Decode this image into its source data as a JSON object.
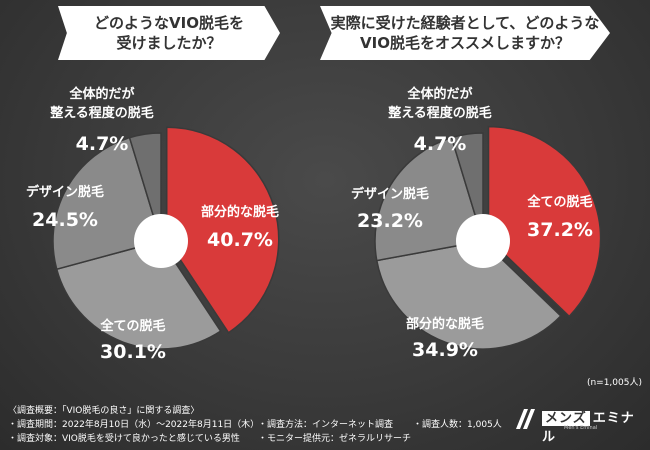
{
  "questions": {
    "left": "どのようなVIO脱毛を\n受けましたか？",
    "right": "実際に受けた経験者として、どのような\nVIO脱毛をオススメしますか？"
  },
  "chart_data": [
    {
      "type": "pie",
      "title": "どのようなVIO脱毛を受けましたか？",
      "slices": [
        {
          "label": "部分的な脱毛",
          "value": 40.7,
          "color": "#d93a3a"
        },
        {
          "label": "全ての脱毛",
          "value": 30.1,
          "color": "#9b9b9b"
        },
        {
          "label": "デザイン脱毛",
          "value": 24.5,
          "color": "#8a8a8a"
        },
        {
          "label": "全体的だが整える程度の脱毛",
          "value": 4.7,
          "color": "#6f6f6f"
        }
      ]
    },
    {
      "type": "pie",
      "title": "実際に受けた経験者として、どのようなVIO脱毛をオススメしますか？",
      "slices": [
        {
          "label": "全ての脱毛",
          "value": 37.2,
          "color": "#d93a3a"
        },
        {
          "label": "部分的な脱毛",
          "value": 34.9,
          "color": "#9b9b9b"
        },
        {
          "label": "デザイン脱毛",
          "value": 23.2,
          "color": "#8a8a8a"
        },
        {
          "label": "全体的だが整える程度の脱毛",
          "value": 4.7,
          "color": "#6f6f6f"
        }
      ]
    }
  ],
  "labels": {
    "left": {
      "a_name": "部分的な脱毛",
      "a_value": "40.7%",
      "b_name": "全ての脱毛",
      "b_value": "30.1%",
      "c_name": "デザイン脱毛",
      "c_value": "24.5%",
      "d_name1": "全体的だが",
      "d_name2": "整える程度の脱毛",
      "d_value": "4.7%"
    },
    "right": {
      "a_name": "全ての脱毛",
      "a_value": "37.2%",
      "b_name": "部分的な脱毛",
      "b_value": "34.9%",
      "c_name": "デザイン脱毛",
      "c_value": "23.2%",
      "d_name1": "全体的だが",
      "d_name2": "整える程度の脱毛",
      "d_value": "4.7%"
    }
  },
  "sample_size": "(n=1,005人)",
  "footer": {
    "overview": "〈調査概要：「VIO脱毛の良さ」に関する調査〉",
    "period": "・調査期間：2022年8月10日（水）〜2022年8月11日（木）",
    "method": "・調査方法：インターネット調査",
    "count": "・調査人数：1,005人",
    "target": "・調査対象：VIO脱毛を受けて良かったと感じている男性",
    "provider": "・モニター提供元：ゼネラルリサーチ"
  },
  "brand": {
    "box": "メンズ",
    "name": "エミナル",
    "sub": "Men's Eminal",
    "icon": "eminal-logo-icon"
  },
  "colors": {
    "accent": "#d93a3a",
    "background": "#3a3a3a"
  }
}
